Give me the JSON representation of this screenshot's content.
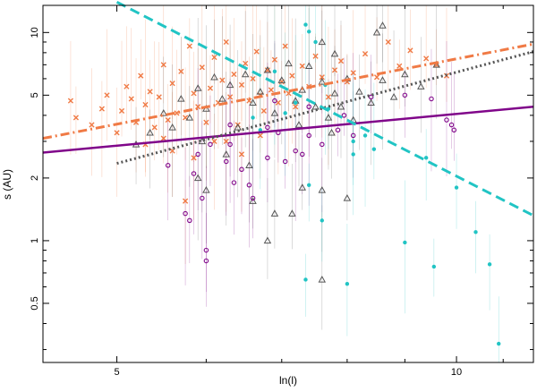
{
  "chart_data": {
    "type": "scatter",
    "title": "",
    "xlabel": "ln(l)",
    "ylabel": "s (AU)",
    "xscale": "log",
    "yscale": "log",
    "xlim": [
      4.3,
      11.7
    ],
    "ylim": [
      0.26,
      13.5
    ],
    "xticks": [
      5,
      10
    ],
    "xtick_labels": [
      "5",
      "10"
    ],
    "yticks": [
      0.5,
      1,
      2,
      5,
      10
    ],
    "ytick_labels": [
      "0.5",
      "1",
      "2",
      "5",
      "10"
    ],
    "grid": false,
    "legend": "none",
    "colors": {
      "orange": "#f07a45",
      "gray": "#555555",
      "purple": "#80068a",
      "cyan": "#21c4c4"
    },
    "fit_lines": [
      {
        "name": "purple-fit",
        "color": "#80068a",
        "style": "solid",
        "x": [
          4.3,
          11.7
        ],
        "y": [
          2.65,
          4.4
        ]
      },
      {
        "name": "orange-fit",
        "color": "#f07a45",
        "style": "dashdot",
        "x": [
          4.3,
          11.7
        ],
        "y": [
          3.1,
          8.8
        ]
      },
      {
        "name": "gray-fit",
        "color": "#555555",
        "style": "dotted",
        "x": [
          5.0,
          11.7
        ],
        "y": [
          2.35,
          8.1
        ]
      },
      {
        "name": "cyan-fit",
        "color": "#21c4c4",
        "style": "dashed",
        "x": [
          5.0,
          11.7
        ],
        "y": [
          14.0,
          1.32
        ]
      }
    ],
    "series": [
      {
        "name": "orange-crosses",
        "marker": "x",
        "color": "#f07a45",
        "points": [
          [
            4.55,
            4.7
          ],
          [
            4.6,
            3.9
          ],
          [
            4.75,
            3.6
          ],
          [
            4.85,
            4.3
          ],
          [
            4.9,
            5.0
          ],
          [
            5.0,
            3.3
          ],
          [
            5.05,
            4.2
          ],
          [
            5.1,
            5.5
          ],
          [
            5.15,
            4.8
          ],
          [
            5.2,
            3.7
          ],
          [
            5.25,
            6.2
          ],
          [
            5.3,
            4.5
          ],
          [
            5.35,
            5.2
          ],
          [
            5.4,
            3.5
          ],
          [
            5.45,
            4.9
          ],
          [
            5.5,
            7.0
          ],
          [
            5.55,
            3.8
          ],
          [
            5.6,
            5.7
          ],
          [
            5.65,
            4.1
          ],
          [
            5.7,
            6.5
          ],
          [
            5.75,
            3.9
          ],
          [
            5.8,
            8.6
          ],
          [
            5.85,
            5.1
          ],
          [
            5.9,
            4.4
          ],
          [
            5.95,
            6.8
          ],
          [
            6.0,
            3.7
          ],
          [
            6.05,
            5.4
          ],
          [
            6.1,
            7.6
          ],
          [
            6.15,
            4.6
          ],
          [
            6.2,
            5.9
          ],
          [
            6.25,
            9.0
          ],
          [
            6.3,
            4.9
          ],
          [
            6.35,
            6.3
          ],
          [
            6.4,
            3.6
          ],
          [
            6.45,
            5.6
          ],
          [
            6.5,
            7.1
          ],
          [
            6.55,
            4.7
          ],
          [
            6.6,
            6.0
          ],
          [
            6.65,
            8.1
          ],
          [
            6.7,
            5.0
          ],
          [
            6.75,
            4.2
          ],
          [
            6.8,
            6.6
          ],
          [
            6.85,
            5.3
          ],
          [
            6.9,
            7.4
          ],
          [
            6.95,
            4.6
          ],
          [
            7.0,
            5.8
          ],
          [
            7.05,
            8.6
          ],
          [
            7.1,
            5.1
          ],
          [
            7.15,
            6.2
          ],
          [
            7.2,
            4.4
          ],
          [
            7.3,
            6.9
          ],
          [
            7.4,
            5.5
          ],
          [
            7.5,
            7.7
          ],
          [
            7.6,
            6.1
          ],
          [
            7.7,
            4.9
          ],
          [
            7.8,
            6.6
          ],
          [
            7.9,
            7.3
          ],
          [
            8.0,
            5.8
          ],
          [
            8.1,
            6.4
          ],
          [
            8.3,
            7.9
          ],
          [
            8.5,
            6.1
          ],
          [
            8.7,
            9.0
          ],
          [
            8.9,
            6.9
          ],
          [
            9.1,
            8.2
          ],
          [
            9.4,
            7.5
          ],
          [
            9.6,
            7.0
          ],
          [
            9.8,
            6.2
          ],
          [
            5.3,
            2.9
          ],
          [
            5.6,
            2.7
          ],
          [
            5.75,
            1.55
          ],
          [
            5.85,
            2.5
          ],
          [
            6.25,
            3.0
          ],
          [
            6.45,
            2.6
          ],
          [
            6.7,
            3.2
          ],
          [
            6.1,
            3.0
          ],
          [
            5.5,
            3.1
          ]
        ]
      },
      {
        "name": "gray-triangles",
        "marker": "triangle",
        "color": "#555555",
        "points": [
          [
            5.2,
            2.9
          ],
          [
            5.35,
            3.3
          ],
          [
            5.5,
            4.1
          ],
          [
            5.6,
            3.5
          ],
          [
            5.7,
            4.8
          ],
          [
            5.8,
            3.9
          ],
          [
            5.9,
            5.4
          ],
          [
            6.0,
            4.3
          ],
          [
            6.1,
            6.1
          ],
          [
            6.2,
            4.8
          ],
          [
            6.3,
            5.6
          ],
          [
            6.4,
            3.5
          ],
          [
            6.5,
            6.3
          ],
          [
            6.6,
            4.6
          ],
          [
            6.7,
            5.2
          ],
          [
            6.8,
            6.6
          ],
          [
            6.9,
            4.1
          ],
          [
            7.0,
            5.9
          ],
          [
            7.1,
            7.1
          ],
          [
            7.2,
            4.7
          ],
          [
            7.3,
            5.3
          ],
          [
            7.4,
            6.9
          ],
          [
            7.5,
            4.4
          ],
          [
            7.6,
            5.8
          ],
          [
            7.7,
            3.9
          ],
          [
            7.8,
            5.1
          ],
          [
            7.9,
            4.4
          ],
          [
            8.0,
            6.0
          ],
          [
            8.2,
            5.2
          ],
          [
            8.4,
            4.6
          ],
          [
            8.6,
            5.9
          ],
          [
            8.8,
            4.9
          ],
          [
            9.0,
            6.3
          ],
          [
            9.3,
            5.5
          ],
          [
            9.6,
            7.0
          ],
          [
            8.5,
            10.0
          ],
          [
            8.6,
            10.8
          ],
          [
            7.6,
            9.0
          ],
          [
            7.8,
            7.9
          ],
          [
            5.9,
            2.0
          ],
          [
            6.0,
            1.75
          ],
          [
            6.6,
            1.55
          ],
          [
            6.9,
            1.35
          ],
          [
            7.3,
            1.8
          ],
          [
            7.6,
            1.75
          ],
          [
            8.0,
            1.6
          ],
          [
            6.8,
            1.0
          ],
          [
            7.15,
            1.35
          ],
          [
            7.6,
            0.65
          ],
          [
            6.55,
            2.3
          ],
          [
            6.25,
            2.6
          ],
          [
            5.95,
            3.0
          ],
          [
            7.75,
            3.3
          ],
          [
            8.1,
            3.8
          ],
          [
            7.25,
            3.6
          ]
        ]
      },
      {
        "name": "purple-circles",
        "marker": "circle",
        "color": "#80068a",
        "points": [
          [
            5.75,
            1.35
          ],
          [
            5.8,
            1.25
          ],
          [
            6.0,
            0.8
          ],
          [
            6.0,
            0.9
          ],
          [
            5.95,
            1.6
          ],
          [
            5.55,
            2.3
          ],
          [
            5.85,
            2.1
          ],
          [
            5.9,
            2.6
          ],
          [
            6.05,
            2.9
          ],
          [
            6.25,
            2.4
          ],
          [
            6.45,
            2.2
          ],
          [
            6.55,
            1.85
          ],
          [
            6.35,
            1.9
          ],
          [
            6.8,
            2.5
          ],
          [
            6.95,
            3.3
          ],
          [
            7.2,
            2.7
          ],
          [
            7.4,
            3.2
          ],
          [
            7.6,
            2.9
          ],
          [
            7.85,
            3.4
          ],
          [
            8.1,
            3.2
          ],
          [
            8.4,
            4.9
          ],
          [
            9.0,
            5.0
          ],
          [
            9.5,
            4.8
          ],
          [
            9.8,
            3.8
          ],
          [
            9.9,
            3.6
          ],
          [
            9.95,
            3.4
          ],
          [
            6.6,
            1.6
          ],
          [
            6.3,
            3.6
          ],
          [
            6.8,
            3.5
          ],
          [
            6.3,
            2.9
          ],
          [
            6.9,
            4.7
          ],
          [
            7.4,
            4.4
          ],
          [
            7.95,
            4.0
          ],
          [
            7.05,
            2.4
          ],
          [
            7.3,
            2.6
          ]
        ]
      },
      {
        "name": "cyan-dots",
        "marker": "dot",
        "color": "#21c4c4",
        "points": [
          [
            7.35,
            10.9
          ],
          [
            7.4,
            10.1
          ],
          [
            7.5,
            9.0
          ],
          [
            6.9,
            6.5
          ],
          [
            7.05,
            4.1
          ],
          [
            7.65,
            5.6
          ],
          [
            7.7,
            4.3
          ],
          [
            7.2,
            4.6
          ],
          [
            8.1,
            3.0
          ],
          [
            8.3,
            3.2
          ],
          [
            8.45,
            2.75
          ],
          [
            8.1,
            2.6
          ],
          [
            7.4,
            1.85
          ],
          [
            7.6,
            1.25
          ],
          [
            7.35,
            0.65
          ],
          [
            8.0,
            0.62
          ],
          [
            9.0,
            0.98
          ],
          [
            9.4,
            2.5
          ],
          [
            9.55,
            0.75
          ],
          [
            10.0,
            1.8
          ],
          [
            10.4,
            1.1
          ],
          [
            10.7,
            0.77
          ],
          [
            10.9,
            0.32
          ],
          [
            6.6,
            3.9
          ],
          [
            6.7,
            3.4
          ]
        ]
      }
    ]
  }
}
